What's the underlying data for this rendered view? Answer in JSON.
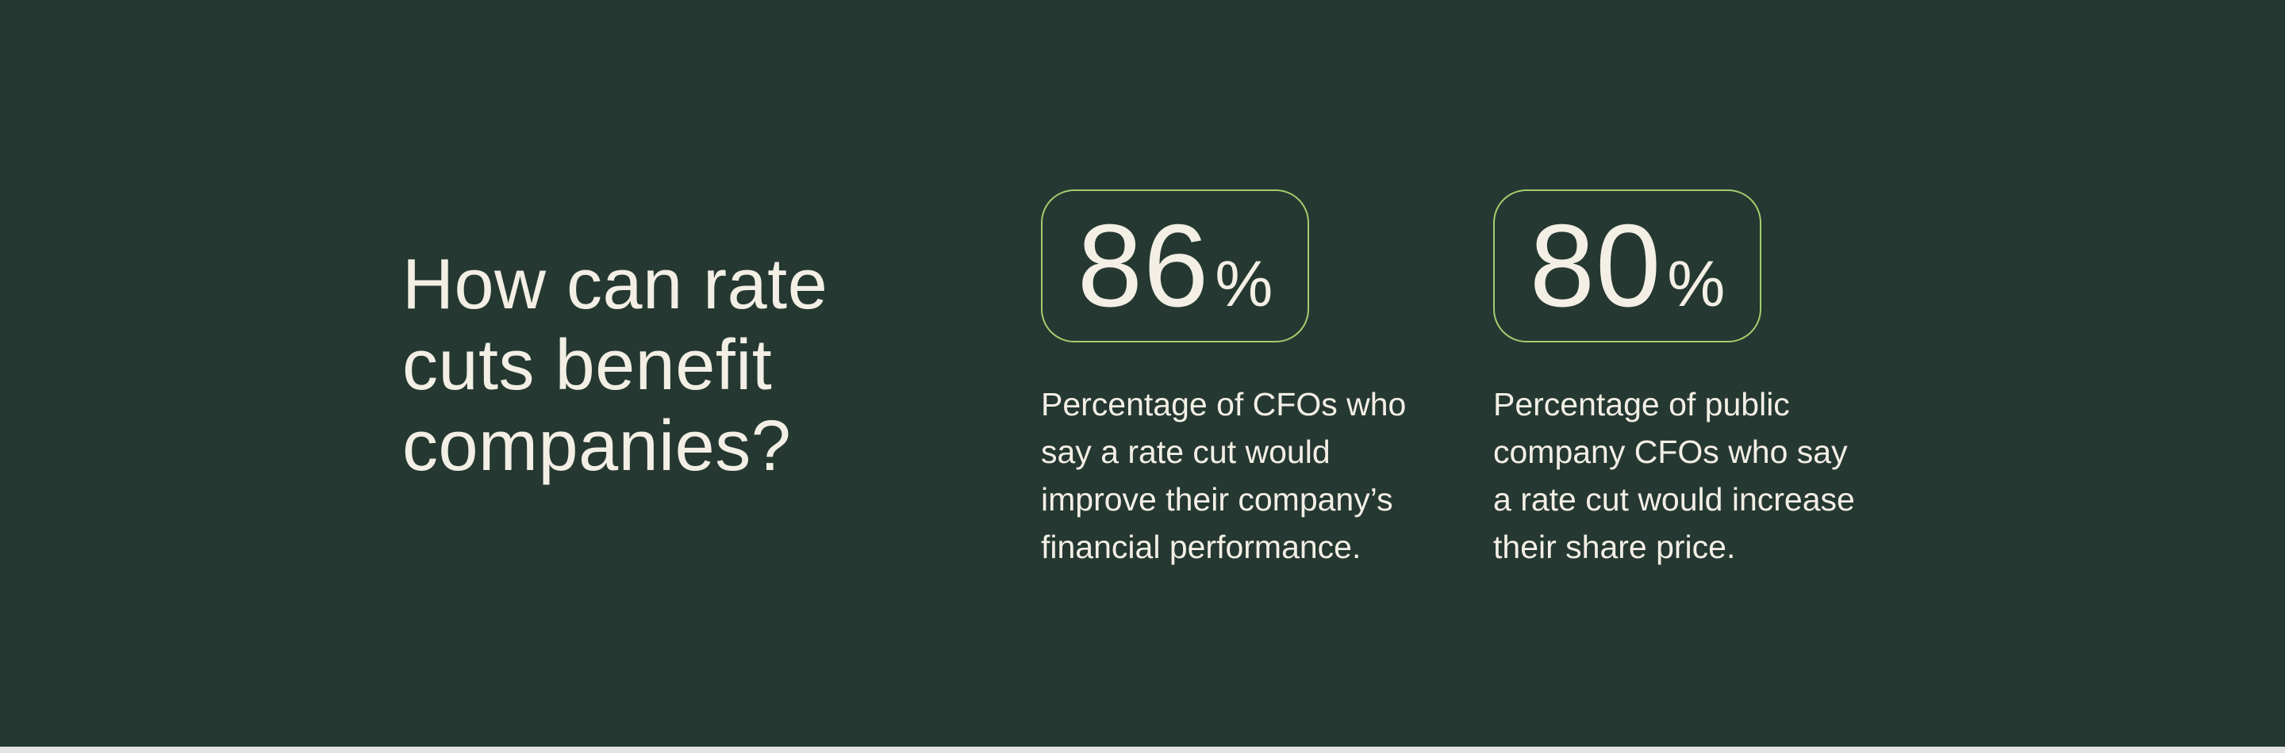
{
  "theme": {
    "background": "#253831",
    "card_border": "#A3CE6E",
    "text": "#F3EFE5",
    "footer_strip": "#E3E3E1"
  },
  "title": "How can rate cuts benefit companies?",
  "stats": [
    {
      "value": "86",
      "unit": "%",
      "description": "Percentage of CFOs who say a rate cut would improve their company’s financial performance."
    },
    {
      "value": "80",
      "unit": "%",
      "description": "Percentage of public company CFOs who say a rate cut would increase their share price."
    }
  ]
}
